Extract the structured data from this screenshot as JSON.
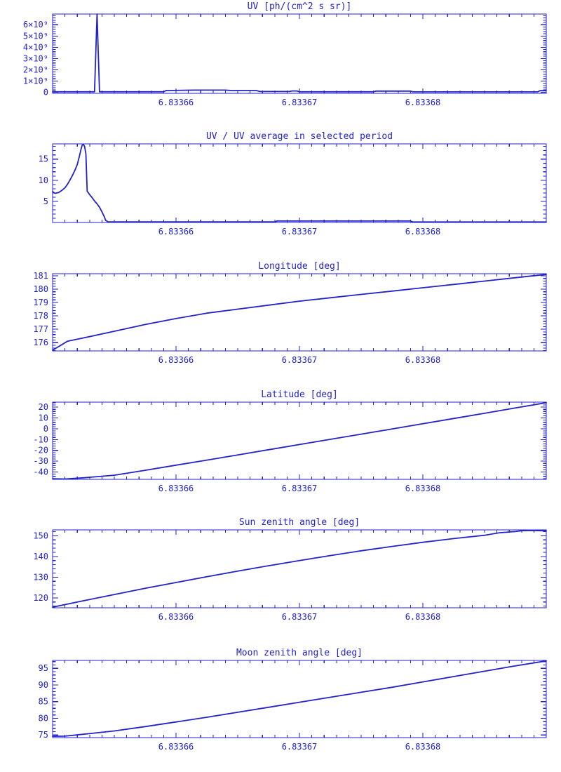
{
  "page": {
    "background": "#ffffff",
    "line_color": "#2222cc"
  },
  "chart_data": [
    {
      "type": "line",
      "title": "UV [ph/(cm^2 s sr)]",
      "xlabel": "",
      "ylabel": "",
      "xlim": [
        6.83365,
        6.83369
      ],
      "x_ticks": [
        6.83366,
        6.83367,
        6.83368
      ],
      "x_tick_labels": [
        "6.83366",
        "6.83367",
        "6.83368"
      ],
      "x_minor_step": 1e-06,
      "ylim": [
        -100000000,
        6950000000
      ],
      "y_tick_values": [
        0,
        1000000000,
        2000000000,
        3000000000,
        4000000000,
        5000000000,
        6000000000
      ],
      "y_tick_labels": [
        "0",
        "1×10⁹",
        "2×10⁹",
        "3×10⁹",
        "4×10⁹",
        "5×10⁹",
        "6×10⁹"
      ],
      "y_minor_step": 200000000,
      "grid": false,
      "legend": "none",
      "points": [
        [
          6.83365,
          40000000
        ],
        [
          6.8336534,
          40000000
        ],
        [
          6.8336536,
          6950000000
        ],
        [
          6.8336538,
          40000000
        ],
        [
          6.833659,
          40000000
        ],
        [
          6.8336592,
          150000000
        ],
        [
          6.8336615,
          190000000
        ],
        [
          6.833664,
          190000000
        ],
        [
          6.8336645,
          150000000
        ],
        [
          6.8336665,
          150000000
        ],
        [
          6.8336668,
          60000000
        ],
        [
          6.8336692,
          60000000
        ],
        [
          6.8336694,
          110000000
        ],
        [
          6.8336698,
          110000000
        ],
        [
          6.83367,
          40000000
        ],
        [
          6.833676,
          40000000
        ],
        [
          6.8336762,
          100000000
        ],
        [
          6.833679,
          100000000
        ],
        [
          6.8336792,
          30000000
        ],
        [
          6.8336893,
          30000000
        ],
        [
          6.8336895,
          140000000
        ],
        [
          6.83369,
          140000000
        ]
      ]
    },
    {
      "type": "line",
      "title": "UV / UV average in selected period",
      "xlabel": "",
      "ylabel": "",
      "xlim": [
        6.83365,
        6.83369
      ],
      "x_ticks": [
        6.83366,
        6.83367,
        6.83368
      ],
      "x_tick_labels": [
        "6.83366",
        "6.83367",
        "6.83368"
      ],
      "x_minor_step": 1e-06,
      "ylim": [
        0,
        18.6
      ],
      "y_tick_values": [
        5,
        10,
        15
      ],
      "y_tick_labels": [
        "5",
        "10",
        "15"
      ],
      "y_minor_step": 1,
      "grid": false,
      "legend": "none",
      "points": [
        [
          6.83365,
          7.3
        ],
        [
          6.8336502,
          6.9
        ],
        [
          6.8336505,
          7.1
        ],
        [
          6.8336508,
          7.7
        ],
        [
          6.833651,
          8.2
        ],
        [
          6.8336512,
          9.0
        ],
        [
          6.8336514,
          10.0
        ],
        [
          6.8336516,
          11.1
        ],
        [
          6.8336518,
          12.3
        ],
        [
          6.833652,
          13.7
        ],
        [
          6.8336521,
          14.9
        ],
        [
          6.8336522,
          16.0
        ],
        [
          6.8336523,
          17.3
        ],
        [
          6.8336524,
          18.3
        ],
        [
          6.8336525,
          18.5
        ],
        [
          6.8336526,
          17.9
        ],
        [
          6.8336527,
          16.2
        ],
        [
          6.8336528,
          7.4
        ],
        [
          6.833653,
          6.6
        ],
        [
          6.8336532,
          5.9
        ],
        [
          6.8336534,
          5.1
        ],
        [
          6.8336536,
          4.4
        ],
        [
          6.8336538,
          3.6
        ],
        [
          6.833654,
          2.5
        ],
        [
          6.8336542,
          1.3
        ],
        [
          6.8336543,
          0.5
        ],
        [
          6.8336545,
          0.15
        ],
        [
          6.833668,
          0.15
        ],
        [
          6.8336682,
          0.35
        ],
        [
          6.833679,
          0.35
        ],
        [
          6.8336792,
          0.12
        ],
        [
          6.83369,
          0.12
        ]
      ]
    },
    {
      "type": "line",
      "title": "Longitude [deg]",
      "xlabel": "",
      "ylabel": "",
      "xlim": [
        6.83365,
        6.83369
      ],
      "x_ticks": [
        6.83366,
        6.83367,
        6.83368
      ],
      "x_tick_labels": [
        "6.83366",
        "6.83367",
        "6.83368"
      ],
      "x_minor_step": 1e-06,
      "ylim": [
        175.38,
        181.15
      ],
      "y_tick_values": [
        176,
        177,
        178,
        179,
        180,
        181
      ],
      "y_tick_labels": [
        "176",
        "177",
        "178",
        "179",
        "180",
        "181"
      ],
      "y_minor_step": 0.2,
      "grid": false,
      "legend": "none",
      "points": [
        [
          6.83365,
          175.43
        ],
        [
          6.8336512,
          176.1
        ],
        [
          6.8336525,
          176.35
        ],
        [
          6.833655,
          176.85
        ],
        [
          6.8336575,
          177.35
        ],
        [
          6.83366,
          177.8
        ],
        [
          6.8336625,
          178.2
        ],
        [
          6.833665,
          178.5
        ],
        [
          6.8336675,
          178.8
        ],
        [
          6.83367,
          179.1
        ],
        [
          6.8336725,
          179.35
        ],
        [
          6.833675,
          179.6
        ],
        [
          6.8336775,
          179.85
        ],
        [
          6.83368,
          180.1
        ],
        [
          6.8336825,
          180.35
        ],
        [
          6.833685,
          180.6
        ],
        [
          6.8336875,
          180.85
        ],
        [
          6.83369,
          181.1
        ]
      ]
    },
    {
      "type": "line",
      "title": "Latitude [deg]",
      "xlabel": "",
      "ylabel": "",
      "xlim": [
        6.83365,
        6.83369
      ],
      "x_ticks": [
        6.83366,
        6.83367,
        6.83368
      ],
      "x_tick_labels": [
        "6.83366",
        "6.83367",
        "6.83368"
      ],
      "x_minor_step": 1e-06,
      "ylim": [
        -46.8,
        24.6
      ],
      "y_tick_values": [
        -40,
        -30,
        -20,
        -10,
        0,
        10,
        20
      ],
      "y_tick_labels": [
        "-40",
        "-30",
        "-20",
        "-10",
        "0",
        "10",
        "20"
      ],
      "y_minor_step": 2,
      "grid": false,
      "legend": "none",
      "points": [
        [
          6.83365,
          -46.3
        ],
        [
          6.833651,
          -46.45
        ],
        [
          6.8336525,
          -45.4
        ],
        [
          6.833655,
          -43.0
        ],
        [
          6.8336575,
          -38.4
        ],
        [
          6.83366,
          -33.7
        ],
        [
          6.8336625,
          -29.0
        ],
        [
          6.833665,
          -24.2
        ],
        [
          6.8336675,
          -19.4
        ],
        [
          6.83367,
          -14.6
        ],
        [
          6.8336725,
          -9.8
        ],
        [
          6.833675,
          -5.0
        ],
        [
          6.8336775,
          -0.2
        ],
        [
          6.83368,
          4.7
        ],
        [
          6.8336825,
          9.5
        ],
        [
          6.833685,
          14.3
        ],
        [
          6.8336875,
          19.2
        ],
        [
          6.83369,
          24.1
        ]
      ]
    },
    {
      "type": "line",
      "title": "Sun zenith angle [deg]",
      "xlabel": "",
      "ylabel": "",
      "xlim": [
        6.83365,
        6.83369
      ],
      "x_ticks": [
        6.83366,
        6.83367,
        6.83368
      ],
      "x_tick_labels": [
        "6.83366",
        "6.83367",
        "6.83368"
      ],
      "x_minor_step": 1e-06,
      "ylim": [
        115.2,
        152.8
      ],
      "y_tick_values": [
        120,
        130,
        140,
        150
      ],
      "y_tick_labels": [
        "120",
        "130",
        "140",
        "150"
      ],
      "y_minor_step": 2,
      "grid": false,
      "legend": "none",
      "points": [
        [
          6.83365,
          115.5
        ],
        [
          6.8336525,
          118.6
        ],
        [
          6.833655,
          121.6
        ],
        [
          6.8336575,
          124.6
        ],
        [
          6.83366,
          127.4
        ],
        [
          6.8336625,
          130.2
        ],
        [
          6.833665,
          132.9
        ],
        [
          6.8336675,
          135.5
        ],
        [
          6.83367,
          138.0
        ],
        [
          6.8336725,
          140.4
        ],
        [
          6.833675,
          142.7
        ],
        [
          6.8336775,
          144.8
        ],
        [
          6.83368,
          146.8
        ],
        [
          6.8336825,
          148.6
        ],
        [
          6.833685,
          150.2
        ],
        [
          6.8336862,
          151.4
        ],
        [
          6.8336875,
          152.0
        ],
        [
          6.833688,
          152.4
        ],
        [
          6.8336888,
          152.5
        ],
        [
          6.83369,
          152.35
        ]
      ]
    },
    {
      "type": "line",
      "title": "Moon zenith angle [deg]",
      "xlabel": "",
      "ylabel": "",
      "xlim": [
        6.83365,
        6.83369
      ],
      "x_ticks": [
        6.83366,
        6.83367,
        6.83368
      ],
      "x_tick_labels": [
        "6.83366",
        "6.83367",
        "6.83368"
      ],
      "x_minor_step": 1e-06,
      "ylim": [
        74.2,
        97.35
      ],
      "y_tick_values": [
        75,
        80,
        85,
        90,
        95
      ],
      "y_tick_labels": [
        "75",
        "80",
        "85",
        "90",
        "95"
      ],
      "y_minor_step": 1,
      "grid": false,
      "legend": "none",
      "points": [
        [
          6.83365,
          74.6
        ],
        [
          6.833651,
          74.65
        ],
        [
          6.8336525,
          75.2
        ],
        [
          6.833655,
          76.2
        ],
        [
          6.8336575,
          77.5
        ],
        [
          6.83366,
          78.9
        ],
        [
          6.8336625,
          80.3
        ],
        [
          6.833665,
          81.8
        ],
        [
          6.8336675,
          83.3
        ],
        [
          6.83367,
          84.8
        ],
        [
          6.8336725,
          86.3
        ],
        [
          6.833675,
          87.8
        ],
        [
          6.8336775,
          89.3
        ],
        [
          6.83368,
          90.9
        ],
        [
          6.8336825,
          92.5
        ],
        [
          6.833685,
          94.1
        ],
        [
          6.8336875,
          95.7
        ],
        [
          6.83369,
          97.2
        ]
      ]
    }
  ]
}
